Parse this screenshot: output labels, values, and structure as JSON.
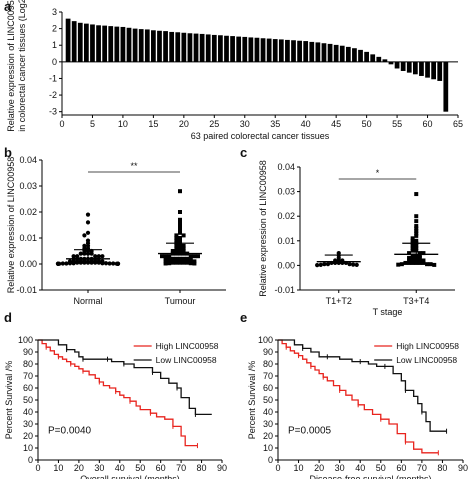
{
  "panels": {
    "a": "a",
    "b": "b",
    "c": "c",
    "d": "d",
    "e": "e"
  },
  "chart_data": [
    {
      "id": "a",
      "type": "bar",
      "ylabel_line1": "Relative expression of LINC00958",
      "ylabel_line2": "in colorectal cancer tissues (Log2)",
      "xlabel": "63 paired colorectal cancer tissues",
      "xlim": [
        0,
        65
      ],
      "ylim": [
        -3.2,
        3.0
      ],
      "xticks": [
        0,
        5,
        10,
        15,
        20,
        25,
        30,
        35,
        40,
        45,
        50,
        55,
        60,
        65
      ],
      "yticks": [
        3,
        2,
        1,
        0,
        -1,
        -2,
        -3
      ],
      "values": [
        2.6,
        2.45,
        2.35,
        2.3,
        2.25,
        2.2,
        2.18,
        2.15,
        2.12,
        2.1,
        2.05,
        2.0,
        1.97,
        1.95,
        1.9,
        1.87,
        1.85,
        1.8,
        1.78,
        1.75,
        1.72,
        1.7,
        1.68,
        1.65,
        1.62,
        1.6,
        1.57,
        1.55,
        1.52,
        1.5,
        1.47,
        1.45,
        1.42,
        1.4,
        1.37,
        1.35,
        1.32,
        1.3,
        1.27,
        1.25,
        1.2,
        1.17,
        1.12,
        1.08,
        1.02,
        0.97,
        0.9,
        0.82,
        0.72,
        0.6,
        0.45,
        0.3,
        0.15,
        -0.15,
        -0.4,
        -0.55,
        -0.65,
        -0.75,
        -0.85,
        -0.95,
        -1.05,
        -1.15,
        -3.0
      ]
    },
    {
      "id": "b",
      "type": "scatter",
      "ylabel": "Relative expression of LINC00958",
      "categories": [
        "Normal",
        "Tumour"
      ],
      "ylim": [
        -0.01,
        0.04
      ],
      "yticks": [
        "-0.01",
        "0.00",
        "0.01",
        "0.02",
        "0.03",
        "0.04"
      ],
      "significance": "**",
      "groups": [
        {
          "name": "Normal",
          "marker": "circle",
          "mean": 0.002,
          "sd_upper": 0.0055,
          "values": [
            0.019,
            0.016,
            0.012,
            0.011,
            0.009,
            0.008,
            0.007,
            0.007,
            0.006,
            0.006,
            0.005,
            0.005,
            0.005,
            0.004,
            0.004,
            0.004,
            0.004,
            0.003,
            0.003,
            0.003,
            0.003,
            0.003,
            0.002,
            0.002,
            0.002,
            0.002,
            0.002,
            0.002,
            0.002,
            0.002,
            0.001,
            0.001,
            0.001,
            0.001,
            0.001,
            0.001,
            0.001,
            0.001,
            0.001,
            0.001,
            0.0005,
            0.0005,
            0.0005,
            0.0005,
            0.0005,
            0.0005,
            0.0005,
            0.0003,
            0.0003,
            0.0003,
            0.0003,
            0.0002,
            0.0002,
            0.0002,
            0.0002,
            0.0001,
            0.0001,
            0.0001,
            0.0001,
            0.0001,
            0.0001,
            0.0001,
            0.0001
          ]
        },
        {
          "name": "Tumour",
          "marker": "square",
          "mean": 0.004,
          "sd_upper": 0.008,
          "values": [
            0.028,
            0.02,
            0.017,
            0.016,
            0.015,
            0.014,
            0.013,
            0.012,
            0.011,
            0.011,
            0.01,
            0.01,
            0.009,
            0.009,
            0.008,
            0.008,
            0.007,
            0.007,
            0.007,
            0.006,
            0.006,
            0.006,
            0.005,
            0.005,
            0.005,
            0.005,
            0.004,
            0.004,
            0.004,
            0.004,
            0.004,
            0.003,
            0.003,
            0.003,
            0.003,
            0.003,
            0.003,
            0.002,
            0.002,
            0.002,
            0.002,
            0.002,
            0.002,
            0.002,
            0.002,
            0.001,
            0.001,
            0.001,
            0.001,
            0.001,
            0.001,
            0.001,
            0.001,
            0.001,
            0.0005,
            0.0005,
            0.0005,
            0.0005,
            0.0005,
            0.0003,
            0.0003,
            0.0002,
            0.0002
          ]
        }
      ]
    },
    {
      "id": "c",
      "type": "scatter",
      "ylabel": "Relative expression of LINC00958",
      "xlabel": "T stage",
      "categories": [
        "T1+T2",
        "T3+T4"
      ],
      "ylim": [
        -0.01,
        0.04
      ],
      "yticks": [
        "-0.01",
        "0.00",
        "0.01",
        "0.02",
        "0.03",
        "0.04"
      ],
      "significance": "*",
      "groups": [
        {
          "name": "T1+T2",
          "marker": "circle",
          "mean": 0.0015,
          "sd_upper": 0.0042,
          "values": [
            0.005,
            0.004,
            0.003,
            0.002,
            0.002,
            0.002,
            0.001,
            0.001,
            0.001,
            0.001,
            0.001,
            0.0005,
            0.0005,
            0.0005,
            0.0003,
            0.0002,
            0.0002,
            0.0001
          ]
        },
        {
          "name": "T3+T4",
          "marker": "square",
          "mean": 0.0045,
          "sd_upper": 0.009,
          "values": [
            0.029,
            0.02,
            0.018,
            0.016,
            0.015,
            0.014,
            0.013,
            0.012,
            0.011,
            0.01,
            0.01,
            0.009,
            0.009,
            0.008,
            0.008,
            0.007,
            0.007,
            0.006,
            0.006,
            0.005,
            0.005,
            0.005,
            0.004,
            0.004,
            0.004,
            0.003,
            0.003,
            0.003,
            0.003,
            0.002,
            0.002,
            0.002,
            0.002,
            0.002,
            0.001,
            0.001,
            0.001,
            0.001,
            0.001,
            0.001,
            0.0005,
            0.0005,
            0.0005,
            0.0003,
            0.0002
          ]
        }
      ]
    },
    {
      "id": "d",
      "type": "line",
      "ylabel": "Percent Survival /%",
      "xlabel": "Overall survival (months)",
      "xlim": [
        0,
        90
      ],
      "ylim": [
        0,
        100
      ],
      "xticks": [
        0,
        10,
        20,
        30,
        40,
        50,
        60,
        70,
        80,
        90
      ],
      "yticks": [
        0,
        10,
        20,
        30,
        40,
        50,
        60,
        70,
        80,
        90,
        100
      ],
      "pvalue": "P=0.0040",
      "legend": "top-right",
      "series": [
        {
          "name": "High LINC00958",
          "color": "#e8241e",
          "x": [
            0,
            2,
            4,
            6,
            8,
            10,
            12,
            14,
            16,
            18,
            20,
            22,
            25,
            28,
            30,
            32,
            35,
            38,
            40,
            42,
            45,
            48,
            50,
            55,
            58,
            62,
            66,
            70,
            72,
            78
          ],
          "y": [
            100,
            97,
            94,
            91,
            88,
            86,
            84,
            82,
            80,
            78,
            76,
            74,
            71,
            68,
            65,
            62,
            60,
            57,
            54,
            52,
            49,
            45,
            42,
            39,
            36,
            34,
            28,
            20,
            12,
            12
          ]
        },
        {
          "name": "Low LINC00958",
          "color": "#111111",
          "x": [
            0,
            10,
            14,
            18,
            20,
            22,
            26,
            30,
            34,
            36,
            38,
            42,
            47,
            52,
            56,
            60,
            64,
            68,
            70,
            74,
            77,
            85
          ],
          "y": [
            100,
            96,
            92,
            90,
            86,
            84,
            84,
            84,
            84,
            82,
            82,
            80,
            77,
            77,
            73,
            68,
            64,
            60,
            52,
            43,
            38,
            38
          ]
        }
      ]
    },
    {
      "id": "e",
      "type": "line",
      "ylabel": "Percent Survival /%",
      "xlabel": "Disease-free survival (months)",
      "xlim": [
        0,
        90
      ],
      "ylim": [
        0,
        100
      ],
      "xticks": [
        0,
        10,
        20,
        30,
        40,
        50,
        60,
        70,
        80,
        90
      ],
      "yticks": [
        0,
        10,
        20,
        30,
        40,
        50,
        60,
        70,
        80,
        90,
        100
      ],
      "pvalue": "P=0.0005",
      "legend": "top-right",
      "series": [
        {
          "name": "High LINC00958",
          "color": "#e8241e",
          "x": [
            0,
            2,
            4,
            6,
            8,
            10,
            12,
            14,
            16,
            18,
            20,
            22,
            24,
            27,
            30,
            33,
            36,
            39,
            42,
            46,
            50,
            54,
            58,
            62,
            66,
            70,
            78
          ],
          "y": [
            100,
            97,
            94,
            91,
            89,
            87,
            84,
            81,
            78,
            75,
            72,
            69,
            66,
            62,
            58,
            54,
            50,
            46,
            42,
            38,
            34,
            30,
            22,
            15,
            9,
            6,
            6
          ]
        },
        {
          "name": "Low LINC00958",
          "color": "#111111",
          "x": [
            0,
            8,
            12,
            16,
            20,
            24,
            30,
            36,
            40,
            44,
            48,
            52,
            56,
            60,
            62,
            66,
            68,
            70,
            72,
            74,
            82
          ],
          "y": [
            100,
            96,
            93,
            90,
            86,
            86,
            84,
            82,
            82,
            80,
            78,
            78,
            72,
            66,
            58,
            53,
            47,
            40,
            32,
            24,
            24
          ]
        }
      ]
    }
  ]
}
